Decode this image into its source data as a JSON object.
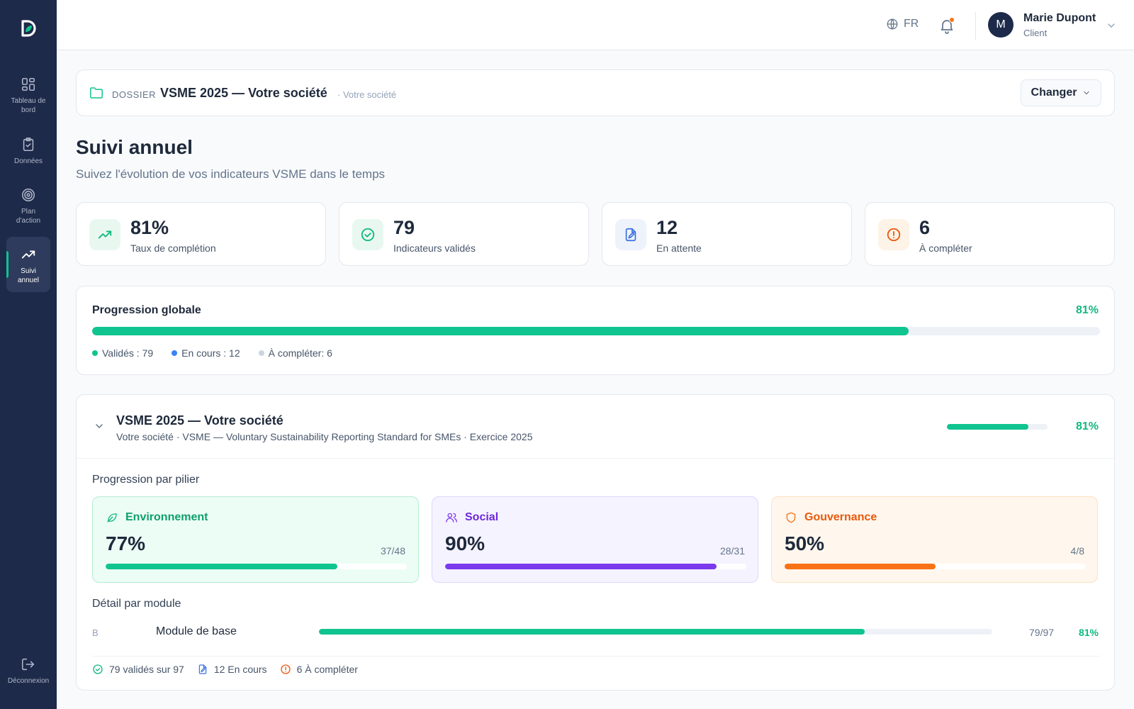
{
  "sidebar": {
    "items": [
      {
        "label": "Tableau de bord",
        "icon": "dashboard-grid-icon"
      },
      {
        "label": "Données",
        "icon": "clipboard-check-icon"
      },
      {
        "label": "Plan d'action",
        "icon": "target-icon"
      },
      {
        "label": "Suivi annuel",
        "icon": "trending-up-icon",
        "active": true
      }
    ],
    "logout_label": "Déconnexion"
  },
  "header": {
    "language": "FR",
    "notifications_unread": true,
    "user": {
      "initial": "M",
      "name": "Marie Dupont",
      "role": "Client"
    }
  },
  "dossier": {
    "label": "DOSSIER",
    "title": "VSME 2025 — Votre société",
    "subtitle": "· Votre société",
    "change_button": "Changer"
  },
  "page": {
    "title": "Suivi annuel",
    "subtitle": "Suivez l'évolution de vos indicateurs VSME dans le temps"
  },
  "stats": [
    {
      "value": "81%",
      "label": "Taux de complétion",
      "icon": "trending-up-icon",
      "color": "#10b981",
      "bg": "#e8f8f1"
    },
    {
      "value": "79",
      "label": "Indicateurs validés",
      "icon": "check-circle-icon",
      "color": "#10b981",
      "bg": "#e8f8f1"
    },
    {
      "value": "12",
      "label": "En attente",
      "icon": "file-edit-icon",
      "color": "#3b6fe0",
      "bg": "#eef2fb"
    },
    {
      "value": "6",
      "label": "À compléter",
      "icon": "alert-circle-icon",
      "color": "#ea580c",
      "bg": "#fdf3e7"
    }
  ],
  "global_progress": {
    "title": "Progression globale",
    "percent_label": "81%",
    "fraction": 0.81,
    "legend": [
      {
        "label": "Validés : 79",
        "color": "#10c48f"
      },
      {
        "label": "En cours : 12",
        "color": "#3b82f6"
      },
      {
        "label": "À compléter: 6",
        "color": "#cbd5e1"
      }
    ]
  },
  "detail": {
    "title": "VSME 2025 — Votre société",
    "subtitle": "Votre société · VSME — Voluntary Sustainability Reporting Standard for SMEs · Exercice 2025",
    "percent_label": "81%",
    "fraction": 0.81,
    "pillars_title": "Progression par pilier",
    "pillars": [
      {
        "name": "Environnement",
        "percent": "77%",
        "count": "37/48",
        "fraction": 0.77,
        "icon": "leaf-icon",
        "color": "#10b981",
        "text_color": "#0e9f6e",
        "bg": "#ecfdf5",
        "border": "#b7ecd6"
      },
      {
        "name": "Social",
        "percent": "90%",
        "count": "28/31",
        "fraction": 0.9,
        "icon": "users-icon",
        "color": "#7c3aed",
        "text_color": "#6d28d9",
        "bg": "#f5f3ff",
        "border": "#ddd6fe"
      },
      {
        "name": "Gouvernance",
        "percent": "50%",
        "count": "4/8",
        "fraction": 0.5,
        "icon": "shield-icon",
        "color": "#f97316",
        "text_color": "#ea580c",
        "bg": "#fff7ed",
        "border": "#fde0c2"
      }
    ],
    "modules_title": "Détail par module",
    "modules": [
      {
        "letter": "B",
        "name": "Module de base",
        "count": "79/97",
        "percent": "81%",
        "fraction": 0.81
      }
    ],
    "summary": [
      {
        "label": "79 validés sur 97",
        "icon": "check-circle-icon",
        "color": "#10b981"
      },
      {
        "label": "12 En cours",
        "icon": "file-edit-icon",
        "color": "#3b6fe0"
      },
      {
        "label": "6 À compléter",
        "icon": "alert-circle-icon",
        "color": "#ea580c"
      }
    ]
  }
}
